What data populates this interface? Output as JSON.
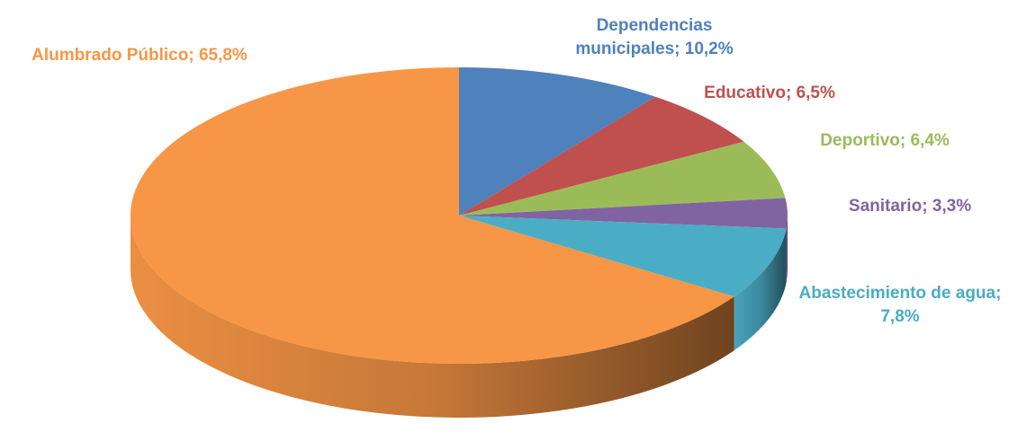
{
  "chart_data": {
    "type": "pie3d",
    "values": [
      10.2,
      6.5,
      6.4,
      3.3,
      7.8,
      65.8
    ],
    "value_labels": [
      "Dependencias municipales; 10,2%",
      "Educativo; 6,5%",
      "Deportivo; 6,4%",
      "Sanitario; 3,3%",
      "Abastecimiento de agua; 7,8%",
      "Alumbrado Público; 65,8%"
    ],
    "colors": [
      "#4f81bd",
      "#c0504d",
      "#9bbb59",
      "#8064a2",
      "#4bacc6",
      "#f79646"
    ]
  }
}
